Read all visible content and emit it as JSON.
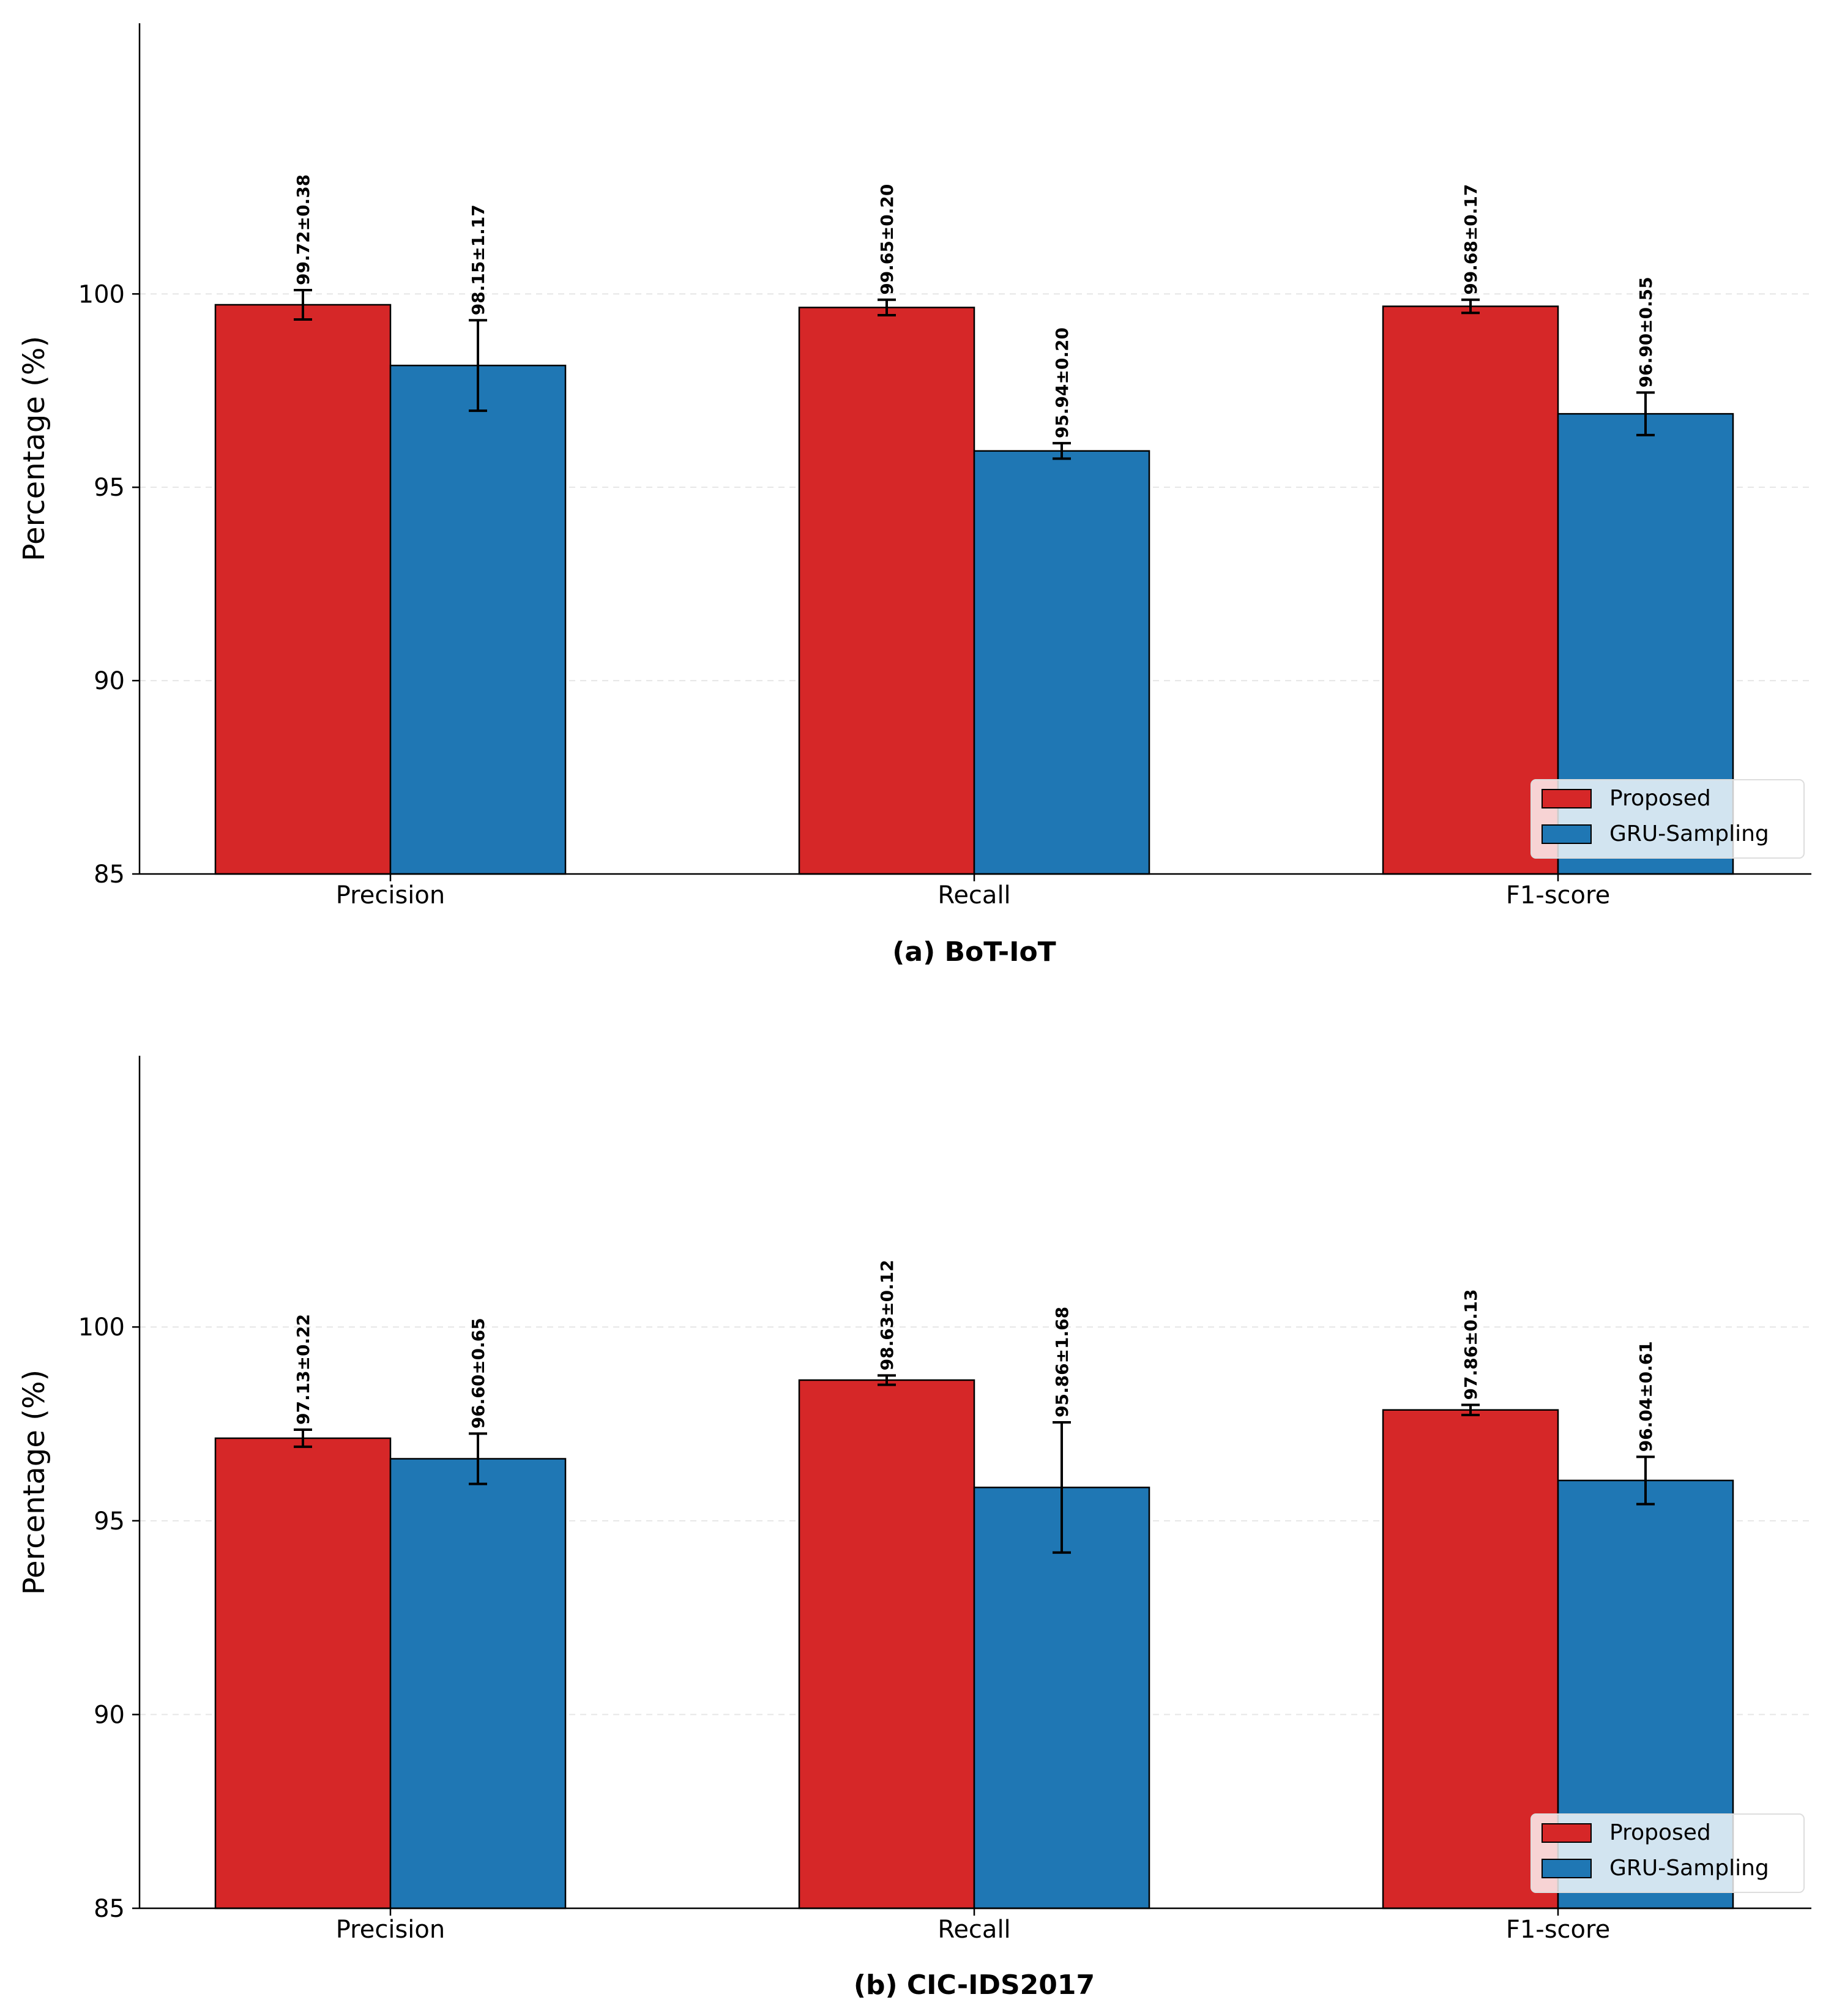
{
  "colors": {
    "proposed": "#d62728",
    "gru": "#1f77b4"
  },
  "legend": {
    "entries": [
      "Proposed",
      "GRU-Sampling"
    ],
    "placement": "lower-right"
  },
  "chart_data": [
    {
      "type": "bar",
      "caption": "(a) BoT-IoT",
      "ylabel": "Percentage (%)",
      "ylim": [
        85,
        107
      ],
      "yticks": [
        85,
        90,
        95,
        100
      ],
      "grid": "y-dashed",
      "categories": [
        "Precision",
        "Recall",
        "F1-score"
      ],
      "series": [
        {
          "name": "Proposed",
          "values": [
            99.72,
            99.65,
            99.68
          ],
          "errors": [
            0.38,
            0.2,
            0.17
          ],
          "labels": [
            "99.72±0.38",
            "99.65±0.20",
            "99.68±0.17"
          ]
        },
        {
          "name": "GRU-Sampling",
          "values": [
            98.15,
            95.94,
            96.9
          ],
          "errors": [
            1.17,
            0.2,
            0.55
          ],
          "labels": [
            "98.15±1.17",
            "95.94±0.20",
            "96.90±0.55"
          ]
        }
      ]
    },
    {
      "type": "bar",
      "caption": "(b) CIC-IDS2017",
      "ylabel": "Percentage (%)",
      "ylim": [
        85,
        107
      ],
      "yticks": [
        85,
        90,
        95,
        100
      ],
      "grid": "y-dashed",
      "categories": [
        "Precision",
        "Recall",
        "F1-score"
      ],
      "series": [
        {
          "name": "Proposed",
          "values": [
            97.13,
            98.63,
            97.86
          ],
          "errors": [
            0.22,
            0.12,
            0.13
          ],
          "labels": [
            "97.13±0.22",
            "98.63±0.12",
            "97.86±0.13"
          ]
        },
        {
          "name": "GRU-Sampling",
          "values": [
            96.6,
            95.86,
            96.04
          ],
          "errors": [
            0.65,
            1.68,
            0.61
          ],
          "labels": [
            "96.60±0.65",
            "95.86±1.68",
            "96.04±0.61"
          ]
        }
      ]
    }
  ]
}
